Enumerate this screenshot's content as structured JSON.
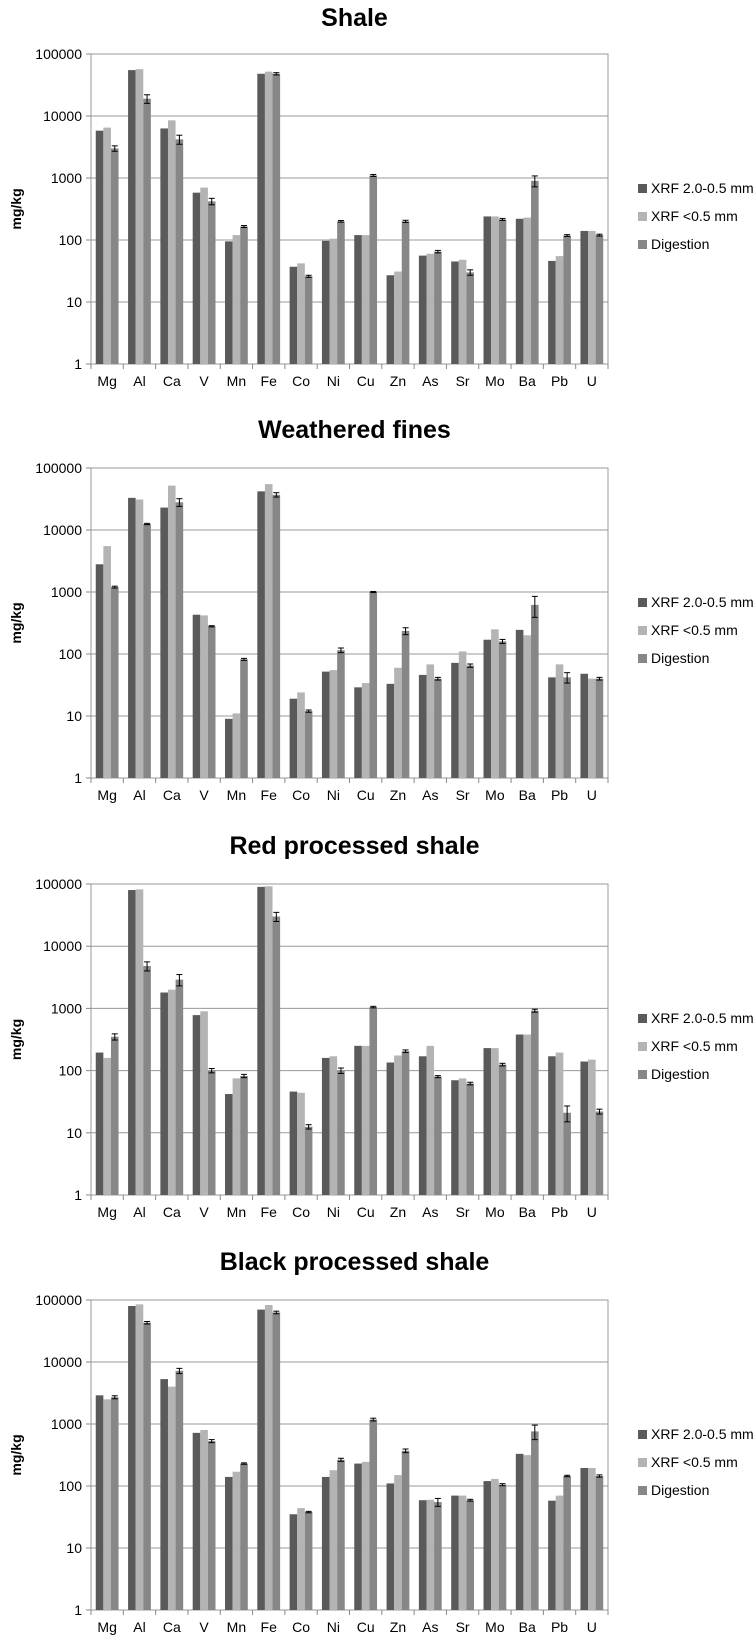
{
  "legend_labels": [
    "XRF 2.0-0.5 mm",
    "XRF <0.5 mm",
    "Digestion"
  ],
  "colors": {
    "xrf_coarse": "#5a5a5a",
    "xrf_fine": "#b4b4b4",
    "digestion": "#878787",
    "grid": "#999999",
    "axis": "#888888",
    "text": "#000000"
  },
  "chart_data": [
    {
      "type": "bar",
      "title": "Shale",
      "ylabel": "mg/kg",
      "yscale": "log",
      "ylim": [
        1,
        100000
      ],
      "yticks": [
        "1",
        "10",
        "100",
        "1000",
        "10000",
        "100000"
      ],
      "grid": true,
      "legend_position": "right",
      "categories": [
        "Mg",
        "Al",
        "Ca",
        "V",
        "Mn",
        "Fe",
        "Co",
        "Ni",
        "Cu",
        "Zn",
        "As",
        "Sr",
        "Mo",
        "Ba",
        "Pb",
        "U"
      ],
      "series": [
        {
          "name": "XRF 2.0-0.5 mm",
          "values": [
            5800,
            55000,
            6300,
            580,
            95,
            48000,
            37,
            97,
            120,
            27,
            56,
            45,
            240,
            220,
            46,
            140
          ],
          "errors": null
        },
        {
          "name": "XRF <0.5 mm",
          "values": [
            6500,
            57000,
            8500,
            700,
            120,
            52000,
            42,
            105,
            120,
            31,
            60,
            48,
            240,
            230,
            55,
            140
          ]
        },
        {
          "name": "Digestion",
          "values": [
            3000,
            19000,
            4200,
            420,
            165,
            48000,
            26,
            200,
            1100,
            200,
            65,
            30,
            215,
            900,
            118,
            120
          ],
          "errors": [
            300,
            3000,
            700,
            50,
            6,
            2000,
            1,
            6,
            40,
            8,
            3,
            3,
            8,
            180,
            4,
            4
          ]
        }
      ]
    },
    {
      "type": "bar",
      "title": "Weathered fines",
      "ylabel": "mg/kg",
      "yscale": "log",
      "ylim": [
        1,
        100000
      ],
      "yticks": [
        "1",
        "10",
        "100",
        "1000",
        "10000",
        "100000"
      ],
      "grid": true,
      "legend_position": "right",
      "categories": [
        "Mg",
        "Al",
        "Ca",
        "V",
        "Mn",
        "Fe",
        "Co",
        "Ni",
        "Cu",
        "Zn",
        "As",
        "Sr",
        "Mo",
        "Ba",
        "Pb",
        "U"
      ],
      "series": [
        {
          "name": "XRF 2.0-0.5 mm",
          "values": [
            2800,
            33000,
            23000,
            430,
            9,
            42000,
            19,
            52,
            29,
            33,
            46,
            72,
            170,
            245,
            42,
            48
          ]
        },
        {
          "name": "XRF <0.5 mm",
          "values": [
            5500,
            31000,
            52000,
            420,
            11,
            55000,
            24,
            55,
            34,
            60,
            68,
            110,
            250,
            200,
            68,
            40
          ]
        },
        {
          "name": "Digestion",
          "values": [
            1200,
            12500,
            28000,
            280,
            82,
            37000,
            12,
            115,
            1000,
            235,
            40,
            65,
            160,
            620,
            42,
            40
          ],
          "errors": [
            40,
            300,
            4000,
            6,
            3,
            3000,
            0.5,
            10,
            20,
            30,
            2,
            4,
            12,
            230,
            8,
            2
          ]
        }
      ]
    },
    {
      "type": "bar",
      "title": "Red processed shale",
      "ylabel": "mg/kg",
      "yscale": "log",
      "ylim": [
        1,
        100000
      ],
      "yticks": [
        "1",
        "10",
        "100",
        "1000",
        "10000",
        "100000"
      ],
      "grid": true,
      "legend_position": "right",
      "categories": [
        "Mg",
        "Al",
        "Ca",
        "V",
        "Mn",
        "Fe",
        "Co",
        "Ni",
        "Cu",
        "Zn",
        "As",
        "Sr",
        "Mo",
        "Ba",
        "Pb",
        "U"
      ],
      "series": [
        {
          "name": "XRF 2.0-0.5 mm",
          "values": [
            195,
            80000,
            1800,
            780,
            42,
            90000,
            46,
            160,
            250,
            135,
            170,
            70,
            230,
            380,
            170,
            140
          ]
        },
        {
          "name": "XRF <0.5 mm",
          "values": [
            160,
            82000,
            2000,
            900,
            75,
            92000,
            44,
            170,
            250,
            175,
            250,
            75,
            230,
            380,
            195,
            150
          ]
        },
        {
          "name": "Digestion",
          "values": [
            350,
            4800,
            2900,
            100,
            82,
            30000,
            12.5,
            100,
            1050,
            205,
            80,
            62,
            125,
            920,
            21,
            22
          ],
          "errors": [
            40,
            800,
            600,
            8,
            5,
            5000,
            1,
            10,
            30,
            10,
            3,
            3,
            6,
            50,
            6,
            2
          ]
        }
      ]
    },
    {
      "type": "bar",
      "title": "Black processed shale",
      "ylabel": "mg/kg",
      "yscale": "log",
      "ylim": [
        1,
        100000
      ],
      "yticks": [
        "1",
        "10",
        "100",
        "1000",
        "10000",
        "100000"
      ],
      "grid": true,
      "legend_position": "right",
      "categories": [
        "Mg",
        "Al",
        "Ca",
        "V",
        "Mn",
        "Fe",
        "Co",
        "Ni",
        "Cu",
        "Zn",
        "As",
        "Sr",
        "Mo",
        "Ba",
        "Pb",
        "U"
      ],
      "series": [
        {
          "name": "XRF 2.0-0.5 mm",
          "values": [
            2900,
            80000,
            5300,
            720,
            140,
            70000,
            35,
            140,
            230,
            110,
            59,
            70,
            120,
            330,
            58,
            195
          ]
        },
        {
          "name": "XRF <0.5 mm",
          "values": [
            2500,
            85000,
            4000,
            800,
            170,
            83000,
            44,
            180,
            245,
            150,
            60,
            70,
            130,
            315,
            70,
            195
          ]
        },
        {
          "name": "Digestion",
          "values": [
            2700,
            43000,
            7200,
            530,
            230,
            63000,
            38,
            265,
            1180,
            370,
            55,
            59,
            105,
            760,
            145,
            145
          ],
          "errors": [
            150,
            2000,
            700,
            30,
            6,
            3000,
            1,
            15,
            60,
            25,
            8,
            2,
            4,
            200,
            4,
            6
          ]
        }
      ]
    }
  ]
}
